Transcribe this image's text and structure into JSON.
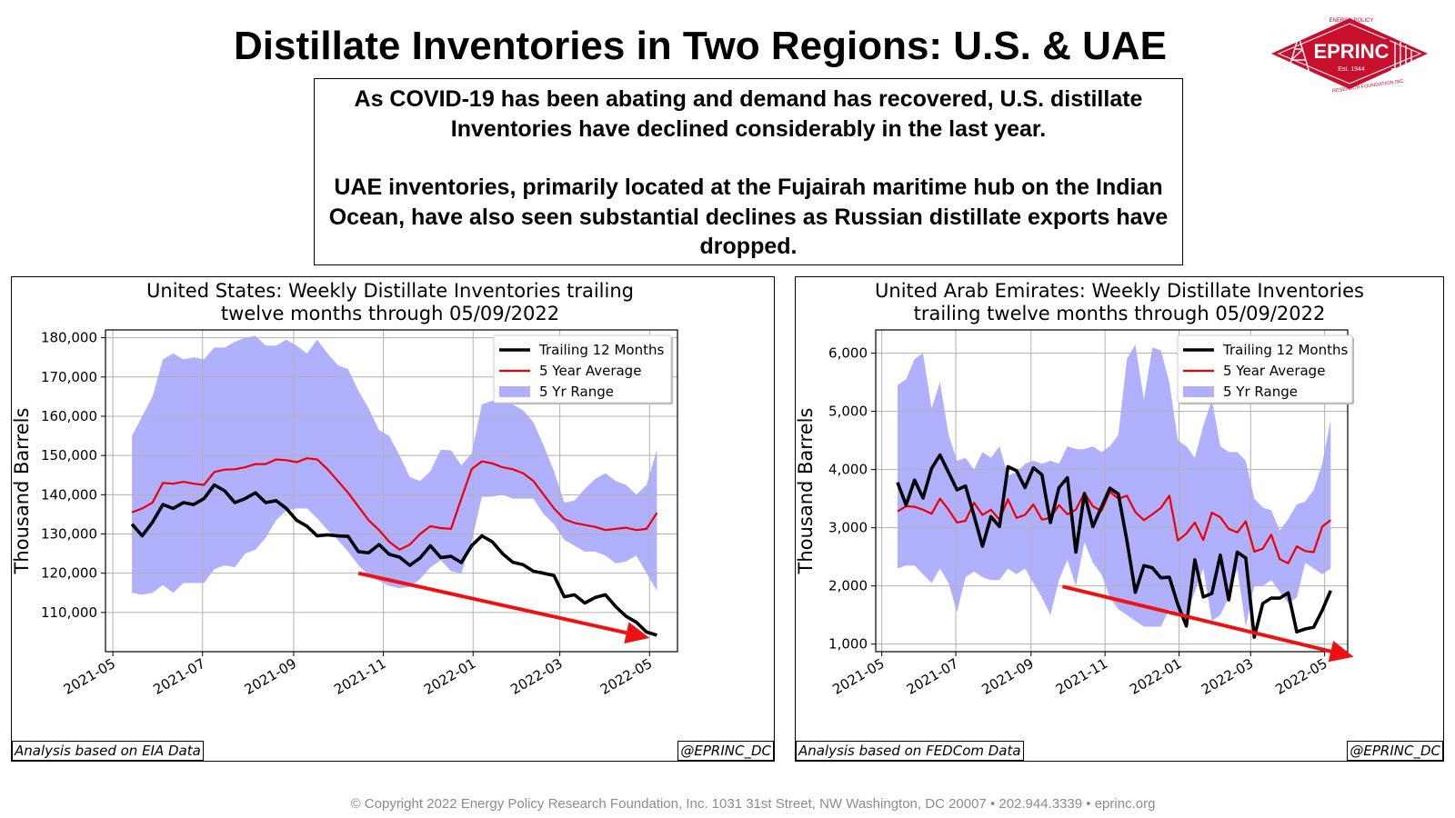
{
  "page": {
    "title": "Distillate Inventories in Two Regions: U.S. & UAE",
    "summary_paragraph_1": "As COVID-19 has been abating and demand has recovered, U.S. distillate Inventories have declined considerably in the last year.",
    "summary_paragraph_2": "UAE inventories, primarily located at the Fujairah maritime hub on the Indian Ocean, have also  seen substantial declines as Russian distillate exports have dropped.",
    "copyright": "© Copyright 2022 Energy Policy Research Foundation, Inc. 1031 31st Street, NW Washington, DC 20007 • 202.944.3339 • eprinc.org",
    "logo": {
      "name": "EPRINC",
      "est": "Est. 1944",
      "arc_top": "ENERGY POLICY",
      "arc_bottom": "RESEARCH FOUNDATION INC.",
      "color": "#c8102e"
    }
  },
  "colors": {
    "trailing": "#000000",
    "average": "#ee0000",
    "range": "#b0b0ff",
    "arrow": "#ee1111"
  },
  "panels": {
    "us": {
      "source_note": "Analysis based on EIA Data",
      "handle": "@EPRINC_DC"
    },
    "uae": {
      "source_note": "Analysis based on FEDCom Data",
      "handle": "@EPRINC_DC"
    }
  },
  "chart_data": [
    {
      "id": "us",
      "type": "line",
      "title": "United States: Weekly Distillate Inventories trailing twelve months through 05/09/2022",
      "title_lines": [
        "United States: Weekly Distillate Inventories trailing",
        "twelve months through 05/09/2022"
      ],
      "xlabel": "",
      "ylabel": "Thousand Barrels",
      "x_ticks": [
        "2021-05",
        "2021-07",
        "2021-09",
        "2021-11",
        "2022-01",
        "2022-03",
        "2022-05"
      ],
      "y_ticks": [
        110000,
        120000,
        130000,
        140000,
        150000,
        160000,
        170000,
        180000
      ],
      "y_tick_labels": [
        "110,000",
        "120,000",
        "130,000",
        "140,000",
        "150,000",
        "160,000",
        "170,000",
        "180,000"
      ],
      "xlim": [
        "2021-04-26",
        "2022-05-20"
      ],
      "ylim": [
        100000,
        182000
      ],
      "grid": true,
      "legend": "top-right",
      "legend_labels": [
        "Trailing 12 Months",
        "5 Year Average",
        "5 Yr Range"
      ],
      "trend_arrow": {
        "from": [
          "2021-10-15",
          120000
        ],
        "to": [
          "2022-05-01",
          103500
        ]
      },
      "x": [
        "2021-05-14",
        "2021-05-21",
        "2021-05-28",
        "2021-06-04",
        "2021-06-11",
        "2021-06-18",
        "2021-06-25",
        "2021-07-02",
        "2021-07-09",
        "2021-07-16",
        "2021-07-23",
        "2021-07-30",
        "2021-08-06",
        "2021-08-13",
        "2021-08-20",
        "2021-08-27",
        "2021-09-03",
        "2021-09-10",
        "2021-09-17",
        "2021-09-24",
        "2021-10-01",
        "2021-10-08",
        "2021-10-15",
        "2021-10-22",
        "2021-10-29",
        "2021-11-05",
        "2021-11-12",
        "2021-11-19",
        "2021-11-26",
        "2021-12-03",
        "2021-12-10",
        "2021-12-17",
        "2021-12-24",
        "2021-12-31",
        "2022-01-07",
        "2022-01-14",
        "2022-01-21",
        "2022-01-28",
        "2022-02-04",
        "2022-02-11",
        "2022-02-18",
        "2022-02-25",
        "2022-03-04",
        "2022-03-11",
        "2022-03-18",
        "2022-03-25",
        "2022-04-01",
        "2022-04-08",
        "2022-04-15",
        "2022-04-22",
        "2022-04-29",
        "2022-05-06"
      ],
      "series": [
        {
          "name": "Trailing 12 Months",
          "values": [
            132500,
            129500,
            133000,
            137500,
            136500,
            138000,
            137500,
            139000,
            142500,
            141000,
            138000,
            139000,
            140500,
            138000,
            138500,
            136500,
            133500,
            132000,
            129500,
            129800,
            129500,
            129400,
            125500,
            125200,
            127300,
            124800,
            124100,
            122000,
            123900,
            127000,
            124000,
            124300,
            122700,
            127000,
            129500,
            128000,
            125000,
            122800,
            122200,
            120500,
            120000,
            119400,
            114000,
            114500,
            112400,
            113800,
            114500,
            111500,
            109000,
            107500,
            105000,
            104200
          ]
        },
        {
          "name": "5 Year Average",
          "values": [
            135500,
            136500,
            138000,
            143000,
            142800,
            143300,
            142800,
            142500,
            145800,
            146400,
            146500,
            147000,
            147800,
            147800,
            149000,
            148800,
            148300,
            149300,
            149000,
            146500,
            143500,
            140500,
            137000,
            133500,
            131000,
            128000,
            126000,
            127300,
            130000,
            132000,
            131500,
            131300,
            139000,
            146500,
            148500,
            148000,
            147000,
            146500,
            145500,
            143500,
            140000,
            136500,
            133800,
            132800,
            132300,
            131800,
            131000,
            131300,
            131600,
            131000,
            131300,
            135400
          ]
        },
        {
          "name": "5 Yr Range Max",
          "values": [
            155000,
            160000,
            165000,
            174500,
            176000,
            174500,
            175000,
            174500,
            177500,
            177500,
            179000,
            180000,
            180500,
            178000,
            178000,
            179500,
            178000,
            176000,
            179500,
            176000,
            173000,
            172000,
            166500,
            162000,
            156500,
            155000,
            150000,
            144500,
            143500,
            146000,
            151500,
            151300,
            147500,
            150500,
            163000,
            164000,
            163500,
            163000,
            161500,
            158500,
            152500,
            146000,
            138000,
            138500,
            141500,
            144000,
            145500,
            143500,
            142500,
            140000,
            142500,
            151500
          ]
        },
        {
          "name": "5 Yr Range Min",
          "values": [
            115000,
            114500,
            115000,
            117000,
            115000,
            117500,
            117500,
            117500,
            121000,
            122000,
            121500,
            125000,
            126000,
            129000,
            133500,
            136000,
            136500,
            136500,
            134000,
            131000,
            128500,
            125500,
            122000,
            119500,
            118000,
            116800,
            116200,
            116500,
            118500,
            121500,
            123300,
            120500,
            120000,
            128000,
            139500,
            139500,
            140000,
            139000,
            139000,
            139000,
            135000,
            132500,
            128500,
            127000,
            125500,
            125500,
            124500,
            122500,
            123000,
            124500,
            120000,
            115500
          ]
        }
      ]
    },
    {
      "id": "uae",
      "type": "line",
      "title": "United Arab Emirates: Weekly Distillate Inventories trailing twelve months through 05/09/2022",
      "title_lines": [
        "United Arab Emirates: Weekly Distillate Inventories",
        "trailing twelve months through 05/09/2022"
      ],
      "xlabel": "",
      "ylabel": "Thousand Barrels",
      "x_ticks": [
        "2021-05",
        "2021-07",
        "2021-09",
        "2021-11",
        "2022-01",
        "2022-03",
        "2022-05"
      ],
      "y_ticks": [
        1000,
        2000,
        3000,
        4000,
        5000,
        6000
      ],
      "y_tick_labels": [
        "1,000",
        "2,000",
        "3,000",
        "4,000",
        "5,000",
        "6,000"
      ],
      "xlim": [
        "2021-04-26",
        "2022-05-20"
      ],
      "ylim": [
        870,
        6400
      ],
      "grid": true,
      "legend": "top-right",
      "legend_labels": [
        "Trailing 12 Months",
        "5 Year Average",
        "5 Yr Range"
      ],
      "trend_arrow": {
        "from": [
          "2021-09-27",
          1990
        ],
        "to": [
          "2022-05-25",
          780
        ]
      },
      "x": [
        "2021-05-14",
        "2021-05-21",
        "2021-05-28",
        "2021-06-04",
        "2021-06-11",
        "2021-06-18",
        "2021-06-25",
        "2021-07-02",
        "2021-07-09",
        "2021-07-16",
        "2021-07-23",
        "2021-07-30",
        "2021-08-06",
        "2021-08-13",
        "2021-08-20",
        "2021-08-27",
        "2021-09-03",
        "2021-09-10",
        "2021-09-17",
        "2021-09-24",
        "2021-10-01",
        "2021-10-08",
        "2021-10-15",
        "2021-10-22",
        "2021-10-29",
        "2021-11-05",
        "2021-11-12",
        "2021-11-19",
        "2021-11-26",
        "2021-12-03",
        "2021-12-10",
        "2021-12-17",
        "2021-12-24",
        "2021-12-31",
        "2022-01-07",
        "2022-01-14",
        "2022-01-21",
        "2022-01-28",
        "2022-02-04",
        "2022-02-11",
        "2022-02-18",
        "2022-02-25",
        "2022-03-04",
        "2022-03-11",
        "2022-03-18",
        "2022-03-25",
        "2022-04-01",
        "2022-04-08",
        "2022-04-15",
        "2022-04-22",
        "2022-04-29",
        "2022-05-06"
      ],
      "series": [
        {
          "name": "Trailing 12 Months",
          "values": [
            3780,
            3390,
            3820,
            3510,
            4020,
            4250,
            3950,
            3650,
            3720,
            3210,
            2680,
            3190,
            3020,
            4050,
            3980,
            3690,
            4030,
            3910,
            3090,
            3690,
            3860,
            2580,
            3590,
            3020,
            3350,
            3680,
            3580,
            2780,
            1890,
            2350,
            2310,
            2140,
            2150,
            1680,
            1310,
            2450,
            1810,
            1870,
            2530,
            1760,
            2580,
            2480,
            1120,
            1700,
            1790,
            1790,
            1880,
            1210,
            1260,
            1290,
            1580,
            1920
          ]
        },
        {
          "name": "5 Year Average",
          "values": [
            3280,
            3370,
            3360,
            3310,
            3240,
            3500,
            3310,
            3090,
            3120,
            3430,
            3220,
            3310,
            3140,
            3490,
            3170,
            3220,
            3400,
            3140,
            3170,
            3390,
            3230,
            3310,
            3600,
            3370,
            3290,
            3620,
            3500,
            3550,
            3270,
            3130,
            3230,
            3340,
            3550,
            2780,
            2900,
            3090,
            2790,
            3260,
            3180,
            2980,
            2920,
            3110,
            2590,
            2640,
            2880,
            2460,
            2390,
            2680,
            2600,
            2580,
            3020,
            3130
          ]
        },
        {
          "name": "5 Yr Range Max",
          "values": [
            5450,
            5550,
            5900,
            6000,
            5050,
            5500,
            4600,
            4150,
            4200,
            4000,
            4300,
            4200,
            4400,
            3900,
            3950,
            4100,
            4150,
            4100,
            4150,
            4100,
            4400,
            4350,
            4350,
            4400,
            4300,
            4400,
            4600,
            5900,
            6150,
            5200,
            6100,
            6050,
            5500,
            4500,
            4400,
            4200,
            4750,
            5200,
            4400,
            4300,
            4300,
            4150,
            3500,
            3350,
            3300,
            2950,
            3150,
            3400,
            3450,
            3650,
            4100,
            4850
          ]
        },
        {
          "name": "5 Yr Range Min",
          "values": [
            2300,
            2350,
            2350,
            2200,
            2050,
            2300,
            2050,
            1550,
            2150,
            2250,
            2150,
            2100,
            2100,
            2300,
            2200,
            2300,
            2050,
            1800,
            1500,
            2100,
            2450,
            2000,
            2750,
            2400,
            2200,
            1800,
            1600,
            1500,
            1400,
            1300,
            1300,
            1300,
            1600,
            1500,
            1500,
            1900,
            2300,
            1400,
            1500,
            1800,
            2300,
            1300,
            2000,
            2000,
            2100,
            1900,
            1700,
            1800,
            2400,
            2300,
            2200,
            2300
          ]
        }
      ]
    }
  ]
}
